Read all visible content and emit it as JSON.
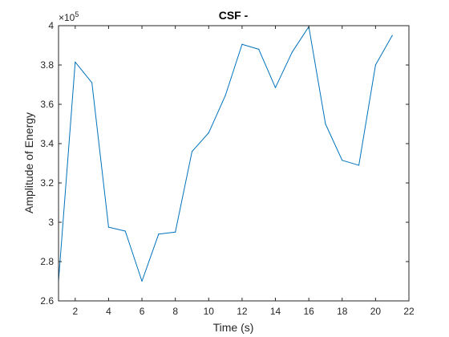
{
  "chart_data": {
    "type": "line",
    "title": "CSF -",
    "xlabel": "Time (s)",
    "ylabel": "Amplitude of Energy",
    "exponent_base": "×10",
    "exponent_power": "5",
    "xlim": [
      1,
      22
    ],
    "ylim": [
      2.6,
      4.0
    ],
    "y_scale_factor": 100000,
    "xticks": [
      2,
      4,
      6,
      8,
      10,
      12,
      14,
      16,
      18,
      20,
      22
    ],
    "yticks": [
      2.6,
      2.8,
      3.0,
      3.2,
      3.4,
      3.6,
      3.8,
      4.0
    ],
    "ytick_labels": [
      "2.6",
      "2.8",
      "3",
      "3.2",
      "3.4",
      "3.6",
      "3.8",
      "4"
    ],
    "grid": false,
    "series": [
      {
        "color": "#0072bd",
        "x": [
          1,
          2,
          3,
          4,
          5,
          6,
          7,
          8,
          9,
          10,
          11,
          12,
          13,
          14,
          15,
          16,
          17,
          18,
          19,
          20,
          21
        ],
        "y": [
          2.7,
          3.815,
          3.71,
          2.975,
          2.955,
          2.7,
          2.94,
          2.95,
          3.36,
          3.455,
          3.645,
          3.905,
          3.88,
          3.685,
          3.865,
          3.995,
          3.5,
          3.315,
          3.29,
          3.8,
          3.95
        ]
      }
    ]
  }
}
